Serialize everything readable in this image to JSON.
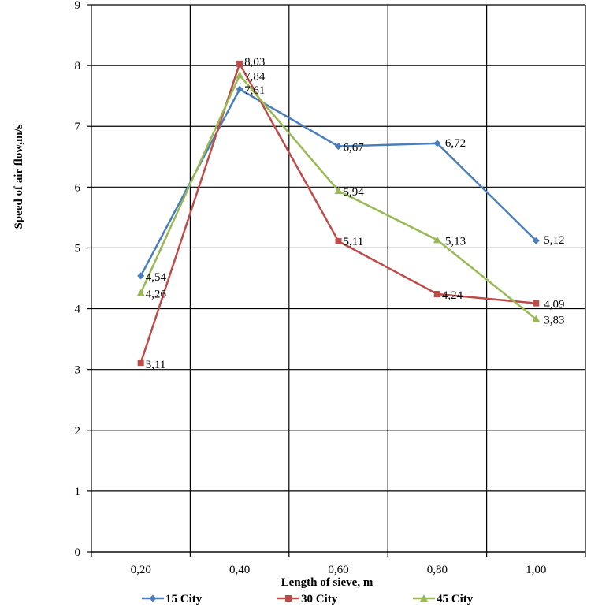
{
  "chart_data": {
    "type": "line",
    "categories": [
      "0,20",
      "0,40",
      "0,60",
      "0,80",
      "1,00"
    ],
    "xlabel": "Length of sieve, m",
    "ylabel": "Speed of air flow,m/s",
    "ylim": [
      0,
      9
    ],
    "yticks": [
      "0",
      "1",
      "2",
      "3",
      "4",
      "5",
      "6",
      "7",
      "8",
      "9"
    ],
    "grid": true,
    "legend_position": "bottom",
    "series": [
      {
        "name": "15 City",
        "color": "#4a7ebb",
        "marker": "diamond",
        "values": [
          4.54,
          7.61,
          6.67,
          6.72,
          5.12
        ],
        "labels": [
          "4,54",
          "7,61",
          "6,67",
          "6,72",
          "5,12"
        ]
      },
      {
        "name": "30 City",
        "color": "#be4b48",
        "marker": "square",
        "values": [
          3.11,
          8.03,
          5.11,
          4.24,
          4.09
        ],
        "labels": [
          "3,11",
          "8,03",
          "5,11",
          "4,24",
          "4,09"
        ]
      },
      {
        "name": "45 City",
        "color": "#98b954",
        "marker": "triangle",
        "values": [
          4.26,
          7.84,
          5.94,
          5.13,
          3.83
        ],
        "labels": [
          "4,26",
          "7,84",
          "5,94",
          "5,13",
          "3,83"
        ]
      }
    ]
  }
}
